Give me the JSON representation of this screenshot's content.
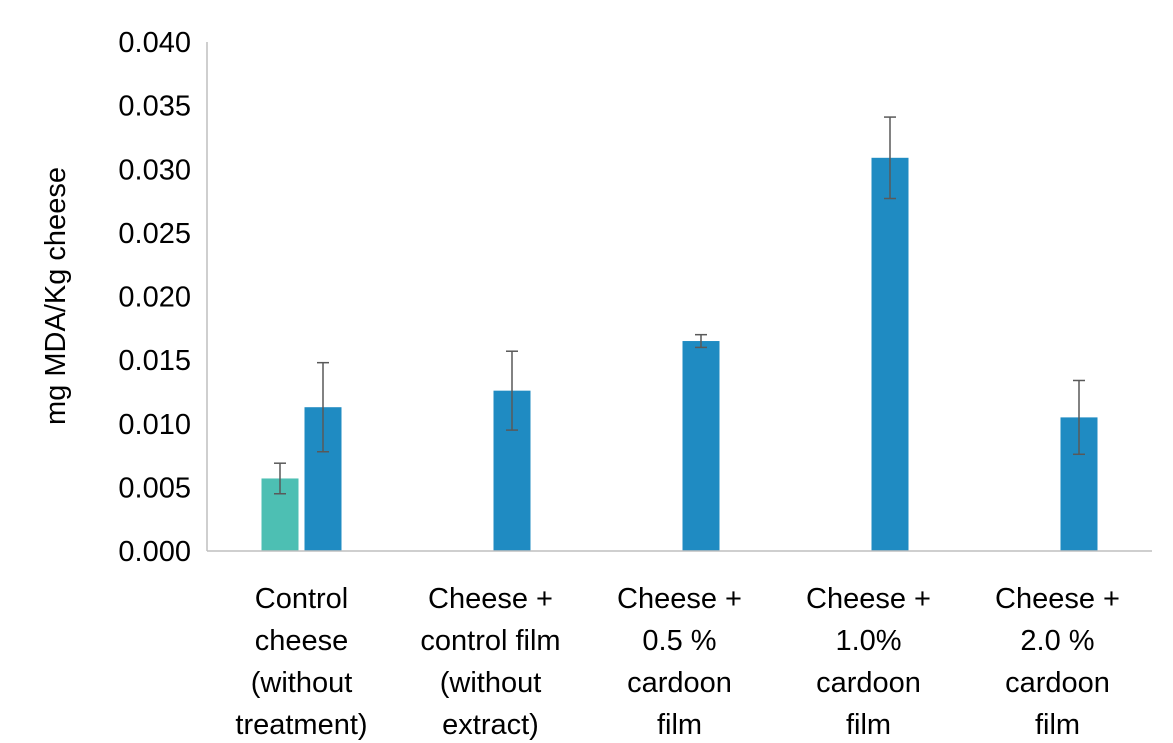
{
  "chart_data": {
    "type": "bar",
    "title": "",
    "xlabel": "",
    "ylabel": "mg MDA/Kg cheese",
    "ylim": [
      0,
      0.04
    ],
    "yticks": [
      "0.000",
      "0.005",
      "0.010",
      "0.015",
      "0.020",
      "0.025",
      "0.030",
      "0.035",
      "0.040"
    ],
    "grid": false,
    "legend": "none",
    "categories": [
      [
        "Control",
        "cheese",
        "(without",
        "treatment)"
      ],
      [
        "Cheese +",
        "control film",
        "(without",
        "extract)"
      ],
      [
        "Cheese +",
        "0.5 %",
        "cardoon",
        "film"
      ],
      [
        "Cheese +",
        "1.0%",
        "cardoon",
        "film"
      ],
      [
        "Cheese +",
        "2.0 %",
        "cardoon",
        "film"
      ]
    ],
    "series": [
      {
        "color": "#4dbfb3",
        "values": [
          0.0057,
          null,
          null,
          null,
          null
        ],
        "errors": [
          0.0012,
          null,
          null,
          null,
          null
        ]
      },
      {
        "color": "#1f8bc2",
        "values": [
          0.0113,
          0.0126,
          0.0165,
          0.0309,
          0.0105
        ],
        "errors": [
          0.0035,
          0.0031,
          0.0005,
          0.0032,
          0.0029
        ]
      }
    ]
  }
}
